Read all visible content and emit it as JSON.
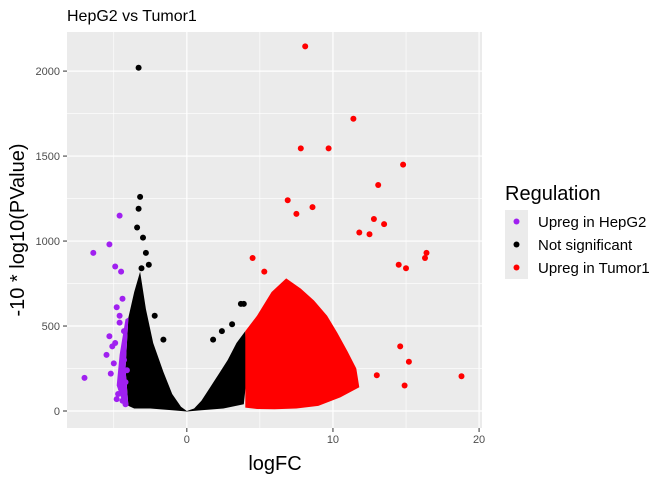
{
  "chart_data": {
    "type": "scatter",
    "title": "HepG2 vs Tumor1",
    "xlabel": "logFC",
    "ylabel": "-10 * log10(PValue)",
    "xlim": [
      -8.2,
      20.2
    ],
    "ylim": [
      -100,
      2230
    ],
    "x_ticks": [
      0,
      10,
      20
    ],
    "y_ticks": [
      0,
      500,
      1000,
      1500,
      2000
    ],
    "grid": true,
    "legend": {
      "title": "Regulation",
      "position": "right"
    },
    "series": [
      {
        "name": "Upreg in HepG2",
        "color": "#a020f0",
        "points": [
          [
            -7.0,
            195
          ],
          [
            -6.4,
            930
          ],
          [
            -5.3,
            980
          ],
          [
            -4.9,
            850
          ],
          [
            -4.6,
            1150
          ],
          [
            -4.5,
            820
          ],
          [
            -5.5,
            330
          ],
          [
            -5.3,
            440
          ],
          [
            -4.8,
            610
          ],
          [
            -4.4,
            660
          ],
          [
            -5.1,
            380
          ],
          [
            -4.2,
            170
          ],
          [
            -4.7,
            100
          ],
          [
            -4.4,
            60
          ],
          [
            -5.0,
            280
          ],
          [
            -4.3,
            470
          ],
          [
            -4.6,
            520
          ],
          [
            -4.1,
            240
          ],
          [
            -5.2,
            220
          ],
          [
            -4.5,
            130
          ],
          [
            -4.8,
            70
          ],
          [
            -4.2,
            40
          ],
          [
            -4.9,
            400
          ],
          [
            -4.3,
            300
          ],
          [
            -4.6,
            560
          ]
        ]
      },
      {
        "name": "Not significant",
        "color": "#000000",
        "points": [
          [
            -3.3,
            2020
          ],
          [
            -3.2,
            1260
          ],
          [
            -3.3,
            1190
          ],
          [
            -3.0,
            1020
          ],
          [
            -2.8,
            930
          ],
          [
            -3.4,
            1080
          ],
          [
            -2.6,
            860
          ],
          [
            -3.1,
            840
          ],
          [
            1.8,
            420
          ],
          [
            2.4,
            470
          ],
          [
            3.7,
            630
          ],
          [
            3.9,
            630
          ],
          [
            3.1,
            510
          ],
          [
            -2.2,
            560
          ],
          [
            -1.6,
            420
          ]
        ]
      },
      {
        "name": "Upreg in Tumor1",
        "color": "#ff0000",
        "points": [
          [
            8.1,
            2145
          ],
          [
            11.4,
            1720
          ],
          [
            7.8,
            1545
          ],
          [
            9.7,
            1545
          ],
          [
            14.8,
            1450
          ],
          [
            13.1,
            1330
          ],
          [
            13.5,
            1100
          ],
          [
            12.8,
            1130
          ],
          [
            12.5,
            1040
          ],
          [
            11.8,
            1050
          ],
          [
            6.9,
            1240
          ],
          [
            8.6,
            1200
          ],
          [
            7.5,
            1160
          ],
          [
            16.4,
            930
          ],
          [
            16.3,
            900
          ],
          [
            14.5,
            860
          ],
          [
            15.0,
            840
          ],
          [
            4.5,
            900
          ],
          [
            5.3,
            820
          ],
          [
            18.8,
            205
          ],
          [
            14.9,
            150
          ],
          [
            13.0,
            210
          ],
          [
            15.2,
            290
          ],
          [
            14.6,
            380
          ]
        ]
      }
    ]
  }
}
